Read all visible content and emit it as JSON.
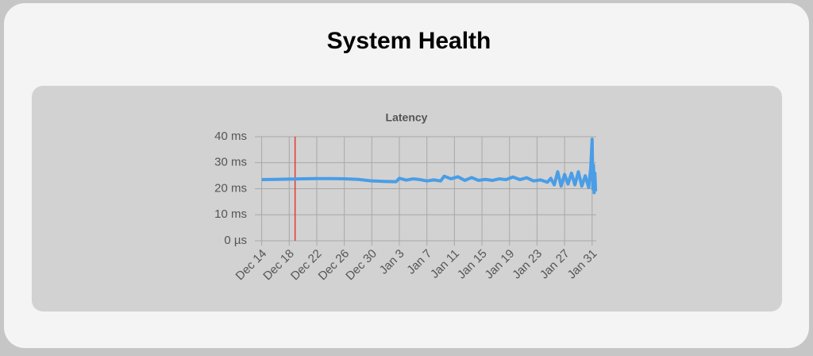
{
  "header": {
    "title": "System Health"
  },
  "chart_data": {
    "type": "line",
    "title": "Latency",
    "x": [
      0,
      2,
      4,
      6,
      8,
      10,
      12,
      14,
      16,
      18,
      19.5,
      20,
      21,
      22,
      23,
      24,
      25,
      26,
      26.5,
      27.5,
      28.5,
      29.5,
      30.5,
      31.5,
      32.5,
      33.5,
      34.5,
      35.5,
      36.5,
      37.5,
      38.5,
      39.5,
      40.5,
      41.5,
      42,
      42.5,
      43,
      43.5,
      44,
      44.5,
      45,
      45.5,
      46,
      46.5,
      47,
      47.5,
      47.8,
      48,
      48.1,
      48.2,
      48.3,
      48.4,
      48.5
    ],
    "values": [
      23.5,
      23.6,
      23.7,
      23.8,
      23.9,
      23.9,
      23.8,
      23.6,
      23.0,
      22.8,
      22.7,
      24.0,
      23.3,
      23.8,
      23.5,
      23.0,
      23.4,
      23.0,
      24.8,
      23.8,
      24.6,
      23.2,
      24.3,
      23.2,
      23.6,
      23.2,
      23.8,
      23.5,
      24.5,
      23.5,
      24.2,
      23.0,
      23.4,
      22.5,
      24.0,
      21.5,
      26.5,
      21.0,
      25.5,
      21.8,
      26.0,
      21.5,
      26.5,
      21.0,
      25.0,
      20.5,
      28.0,
      39.0,
      20.0,
      29.0,
      18.5,
      26.0,
      19.0
    ],
    "color": "#4a9de6",
    "xlim": [
      -0.3,
      48.6
    ],
    "xticks": [
      {
        "value": 0,
        "label": "Dec 14"
      },
      {
        "value": 4,
        "label": "Dec 18"
      },
      {
        "value": 8,
        "label": "Dec 22"
      },
      {
        "value": 12,
        "label": "Dec 26"
      },
      {
        "value": 16,
        "label": "Dec 30"
      },
      {
        "value": 20,
        "label": "Jan 3"
      },
      {
        "value": 24,
        "label": "Jan 7"
      },
      {
        "value": 28,
        "label": "Jan 11"
      },
      {
        "value": 32,
        "label": "Jan 15"
      },
      {
        "value": 36,
        "label": "Jan 19"
      },
      {
        "value": 40,
        "label": "Jan 23"
      },
      {
        "value": 44,
        "label": "Jan 27"
      },
      {
        "value": 48,
        "label": "Jan 31"
      }
    ],
    "ylim": [
      0,
      40
    ],
    "yticks": [
      {
        "value": 0,
        "label": "0 µs"
      },
      {
        "value": 10,
        "label": "10 ms"
      },
      {
        "value": 20,
        "label": "20 ms"
      },
      {
        "value": 30,
        "label": "30 ms"
      },
      {
        "value": 40,
        "label": "40 ms"
      }
    ],
    "grid": true,
    "marker": {
      "x": 4.85,
      "color": "#e53935"
    }
  }
}
